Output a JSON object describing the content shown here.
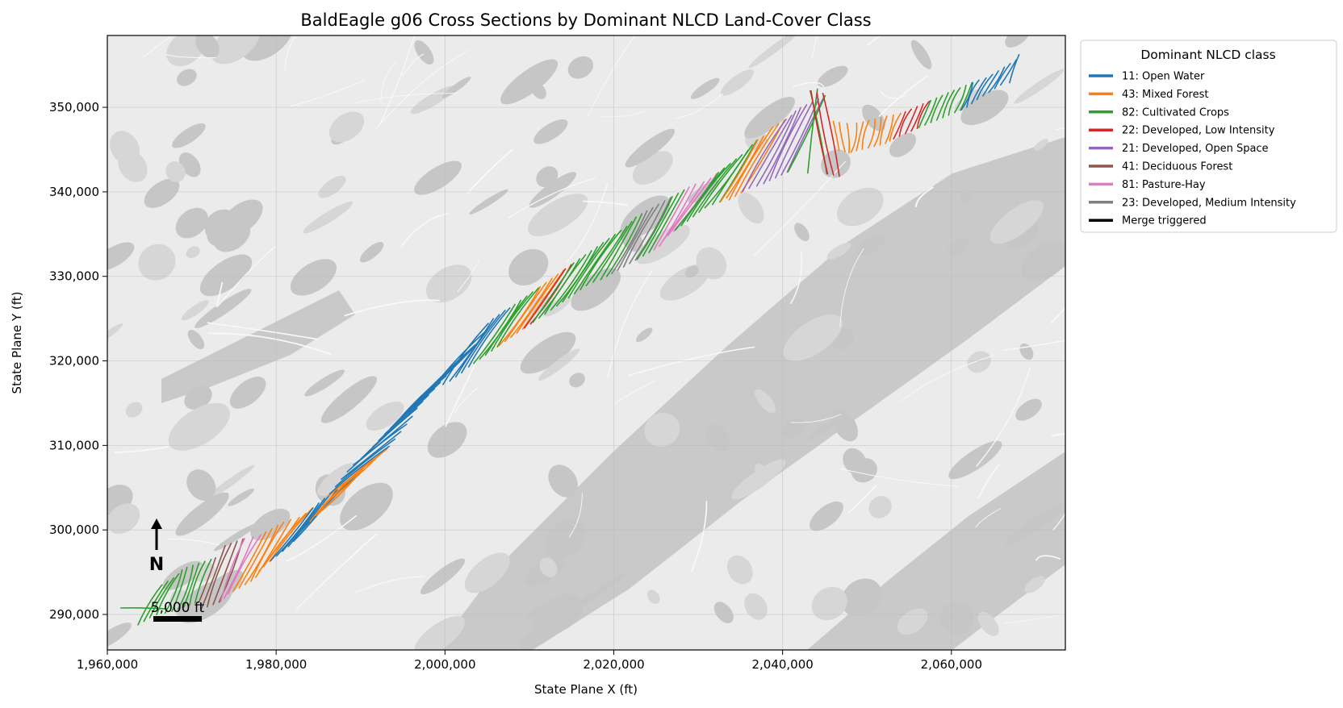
{
  "chart_data": {
    "type": "line",
    "title": "BaldEagle g06 Cross Sections by Dominant NLCD Land-Cover Class",
    "xlabel": "State Plane X (ft)",
    "ylabel": "State Plane Y (ft)",
    "xlim": [
      1960000,
      2073500
    ],
    "ylim": [
      285800,
      358500
    ],
    "x_ticks": [
      1960000,
      1980000,
      2000000,
      2020000,
      2040000,
      2060000
    ],
    "x_tick_labels": [
      "1,960,000",
      "1,980,000",
      "2,000,000",
      "2,020,000",
      "2,040,000",
      "2,060,000"
    ],
    "y_ticks": [
      290000,
      300000,
      310000,
      320000,
      330000,
      340000,
      350000
    ],
    "y_tick_labels": [
      "290,000",
      "300,000",
      "310,000",
      "320,000",
      "330,000",
      "340,000",
      "350,000"
    ],
    "grid": true,
    "legend": {
      "title": "Dominant NLCD class",
      "placement": "outside-upper-right",
      "entries": [
        {
          "label": "11: Open Water",
          "color": "#1f77b4"
        },
        {
          "label": "43: Mixed Forest",
          "color": "#ff7f0e"
        },
        {
          "label": "82: Cultivated Crops",
          "color": "#2ca02c"
        },
        {
          "label": "22: Developed, Low Intensity",
          "color": "#d62728"
        },
        {
          "label": "21: Developed, Open Space",
          "color": "#9467bd"
        },
        {
          "label": "41: Deciduous Forest",
          "color": "#8c564b"
        },
        {
          "label": "81: Pasture-Hay",
          "color": "#e377c2"
        },
        {
          "label": "23: Developed, Medium Intensity",
          "color": "#7f7f7f"
        },
        {
          "label": "Merge triggered",
          "color": "#000000"
        }
      ]
    },
    "segments": [
      {
        "x0": 1964000,
        "x1": 1971500,
        "class": "82: Cultivated Crops"
      },
      {
        "x0": 1971500,
        "x1": 1974500,
        "class": "41: Deciduous Forest"
      },
      {
        "x0": 1974500,
        "x1": 1976500,
        "class": "81: Pasture-Hay"
      },
      {
        "x0": 1976500,
        "x1": 1981500,
        "class": "43: Mixed Forest"
      },
      {
        "x0": 1981500,
        "x1": 1986500,
        "class": "11: Open Water"
      },
      {
        "x0": 1986500,
        "x1": 1989500,
        "class": "43: Mixed Forest"
      },
      {
        "x0": 1989500,
        "x1": 2005500,
        "class": "11: Open Water"
      },
      {
        "x0": 2005500,
        "x1": 2008500,
        "class": "82: Cultivated Crops"
      },
      {
        "x0": 2008500,
        "x1": 2011500,
        "class": "43: Mixed Forest"
      },
      {
        "x0": 2011500,
        "x1": 2012500,
        "class": "22: Developed, Low Intensity"
      },
      {
        "x0": 2012500,
        "x1": 2021500,
        "class": "82: Cultivated Crops"
      },
      {
        "x0": 2021500,
        "x1": 2024500,
        "class": "23: Developed, Medium Intensity"
      },
      {
        "x0": 2024500,
        "x1": 2026500,
        "class": "82: Cultivated Crops"
      },
      {
        "x0": 2026500,
        "x1": 2029500,
        "class": "81: Pasture-Hay"
      },
      {
        "x0": 2029500,
        "x1": 2034500,
        "class": "82: Cultivated Crops"
      },
      {
        "x0": 2034500,
        "x1": 2037500,
        "class": "43: Mixed Forest"
      },
      {
        "x0": 2037500,
        "x1": 2042500,
        "class": "21: Developed, Open Space"
      },
      {
        "x0": 2042500,
        "x1": 2044000,
        "class": "82: Cultivated Crops"
      },
      {
        "x0": 2044000,
        "x1": 2046000,
        "class": "22: Developed, Low Intensity"
      },
      {
        "x0": 2046000,
        "x1": 2053500,
        "class": "43: Mixed Forest"
      },
      {
        "x0": 2053500,
        "x1": 2056500,
        "class": "22: Developed, Low Intensity"
      },
      {
        "x0": 2056500,
        "x1": 2061500,
        "class": "82: Cultivated Crops"
      },
      {
        "x0": 2061500,
        "x1": 2067500,
        "class": "11: Open Water"
      }
    ],
    "annotations": {
      "north_label": "N",
      "scale_bar_label": "5,000 ft"
    }
  }
}
